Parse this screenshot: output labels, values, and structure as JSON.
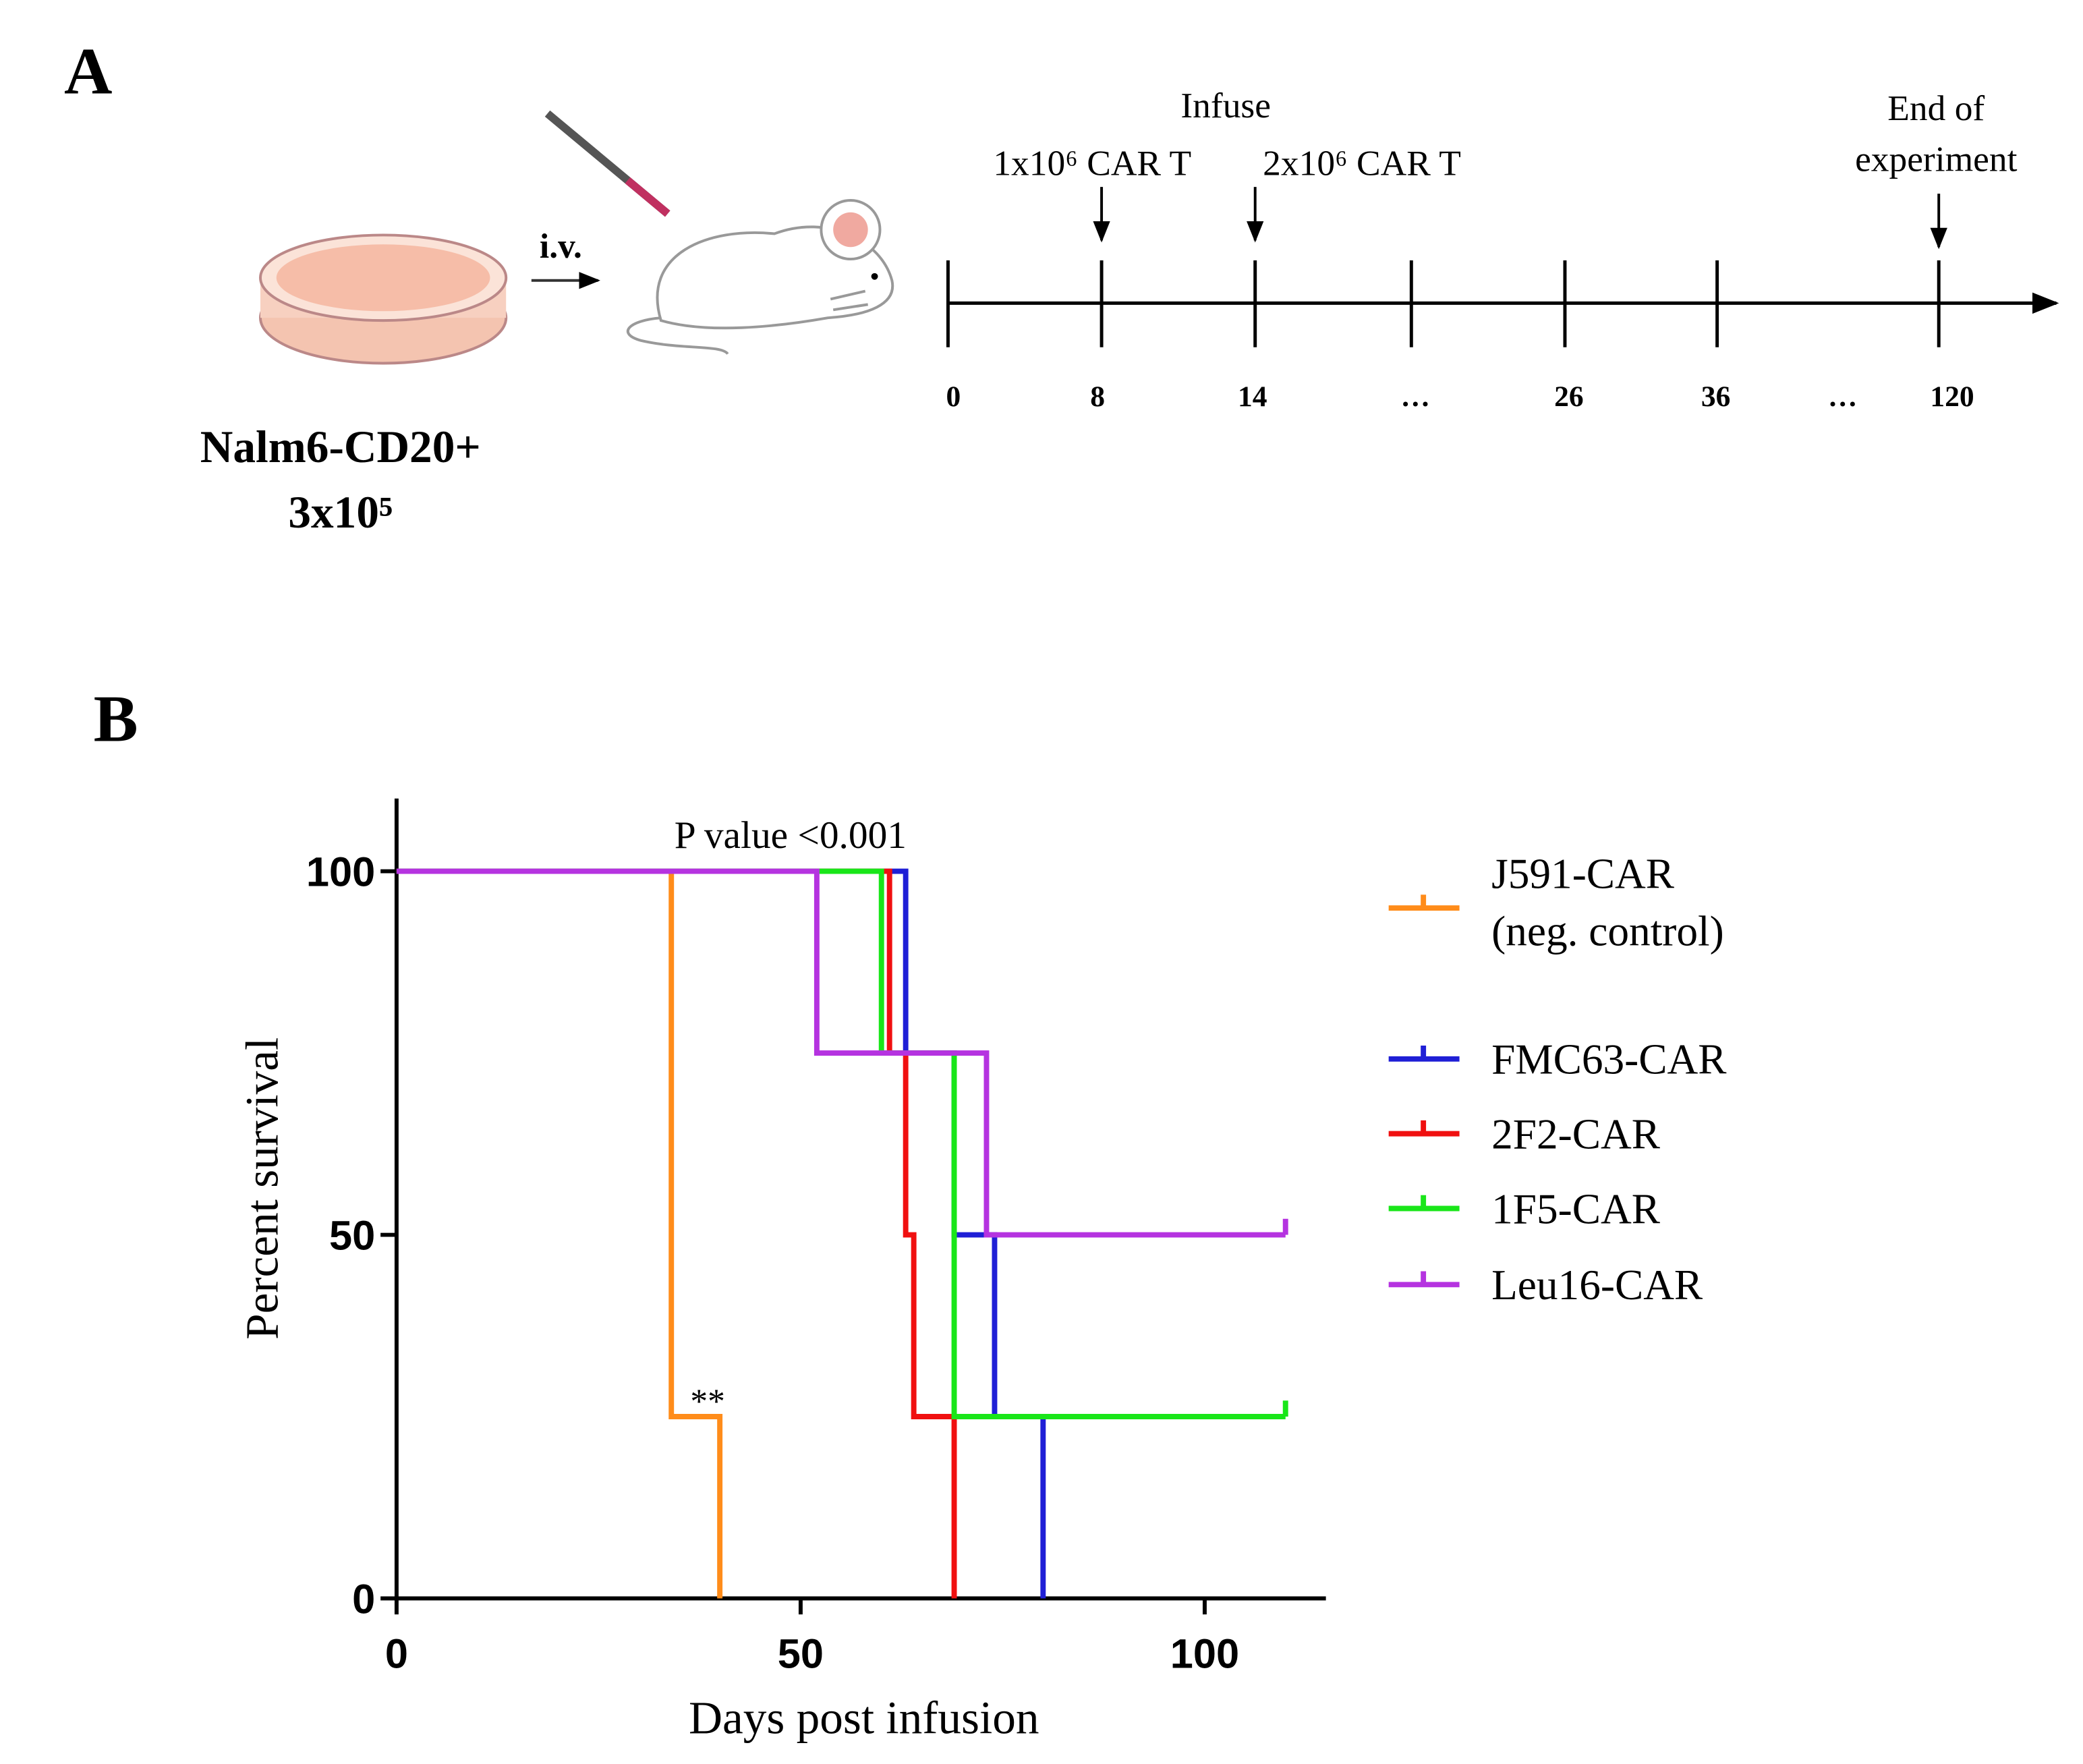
{
  "panel_a": {
    "label": "A",
    "cells": "Nalm6-CD20+",
    "dose": "3x10⁵",
    "route": "i.v.",
    "infuse": "Infuse",
    "first_dose": "1x10⁶ CAR T",
    "second_dose": "2x10⁶ CAR T",
    "end": [
      "End of",
      "experiment"
    ],
    "timeline": {
      "labels": [
        "0",
        "8",
        "14",
        "…",
        "26",
        "36",
        "…",
        "120"
      ]
    }
  },
  "chart_data": {
    "type": "step",
    "panel_label": "B",
    "xlabel": "Days post infusion",
    "ylabel": "Percent survival",
    "annotations": [
      "P value <0.001",
      "**"
    ],
    "xlim": [
      0,
      115
    ],
    "ylim": [
      0,
      110
    ],
    "xticks": [
      0,
      50,
      100
    ],
    "yticks": [
      0,
      50,
      100
    ],
    "legend": "right",
    "series": [
      {
        "name": "J591-CAR (neg. control)",
        "color": "#ff8c1a",
        "x": [
          0,
          34,
          40
        ],
        "values": [
          100,
          25,
          0
        ]
      },
      {
        "name": "FMC63-CAR",
        "color": "#1f1fd6",
        "x": [
          0,
          63,
          69,
          74,
          80
        ],
        "values": [
          100,
          75,
          50,
          25,
          0
        ]
      },
      {
        "name": "2F2-CAR",
        "color": "#f01010",
        "x": [
          0,
          61,
          63,
          64,
          69
        ],
        "values": [
          100,
          75,
          50,
          25,
          0
        ]
      },
      {
        "name": "1F5-CAR",
        "color": "#19e619",
        "x": [
          0,
          60,
          69,
          110
        ],
        "values": [
          100,
          75,
          25,
          25
        ]
      },
      {
        "name": "Leu16-CAR",
        "color": "#b533e0",
        "x": [
          0,
          52,
          73,
          110
        ],
        "values": [
          100,
          75,
          50,
          50
        ]
      }
    ]
  }
}
